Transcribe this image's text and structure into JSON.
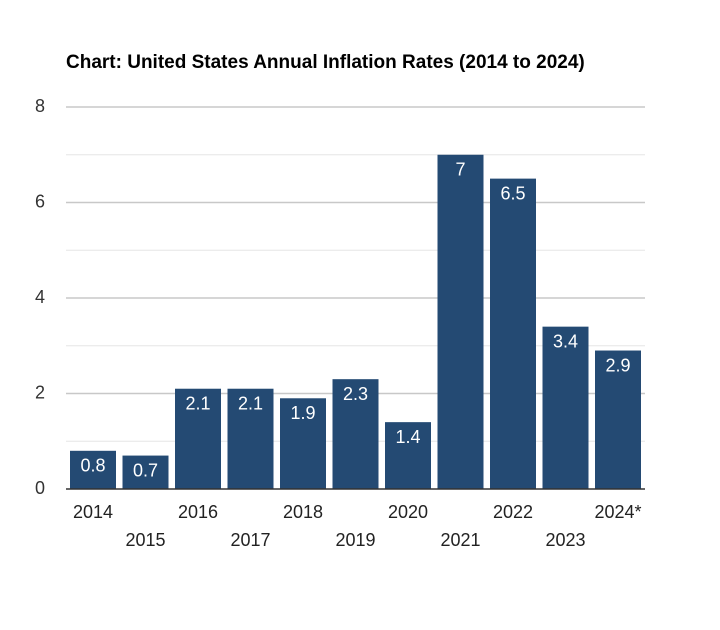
{
  "chart_data": {
    "type": "bar",
    "title": "Chart: United States Annual Inflation Rates (2014 to 2024)",
    "xlabel": "",
    "ylabel": "",
    "categories": [
      "2014",
      "2015",
      "2016",
      "2017",
      "2018",
      "2019",
      "2020",
      "2021",
      "2022",
      "2023",
      "2024*"
    ],
    "values": [
      0.8,
      0.7,
      2.1,
      2.1,
      1.9,
      2.3,
      1.4,
      7,
      6.5,
      3.4,
      2.9
    ],
    "data_labels": [
      "0.8",
      "0.7",
      "2.1",
      "2.1",
      "1.9",
      "2.3",
      "1.4",
      "7",
      "6.5",
      "3.4",
      "2.9"
    ],
    "ylim": [
      0,
      8
    ],
    "y_ticks": [
      "0",
      "2",
      "4",
      "6",
      "8"
    ],
    "grid": true,
    "legend": "none",
    "bar_color": "#244a73",
    "grid_color": "#c8c8c8",
    "axis_color": "#333333"
  }
}
